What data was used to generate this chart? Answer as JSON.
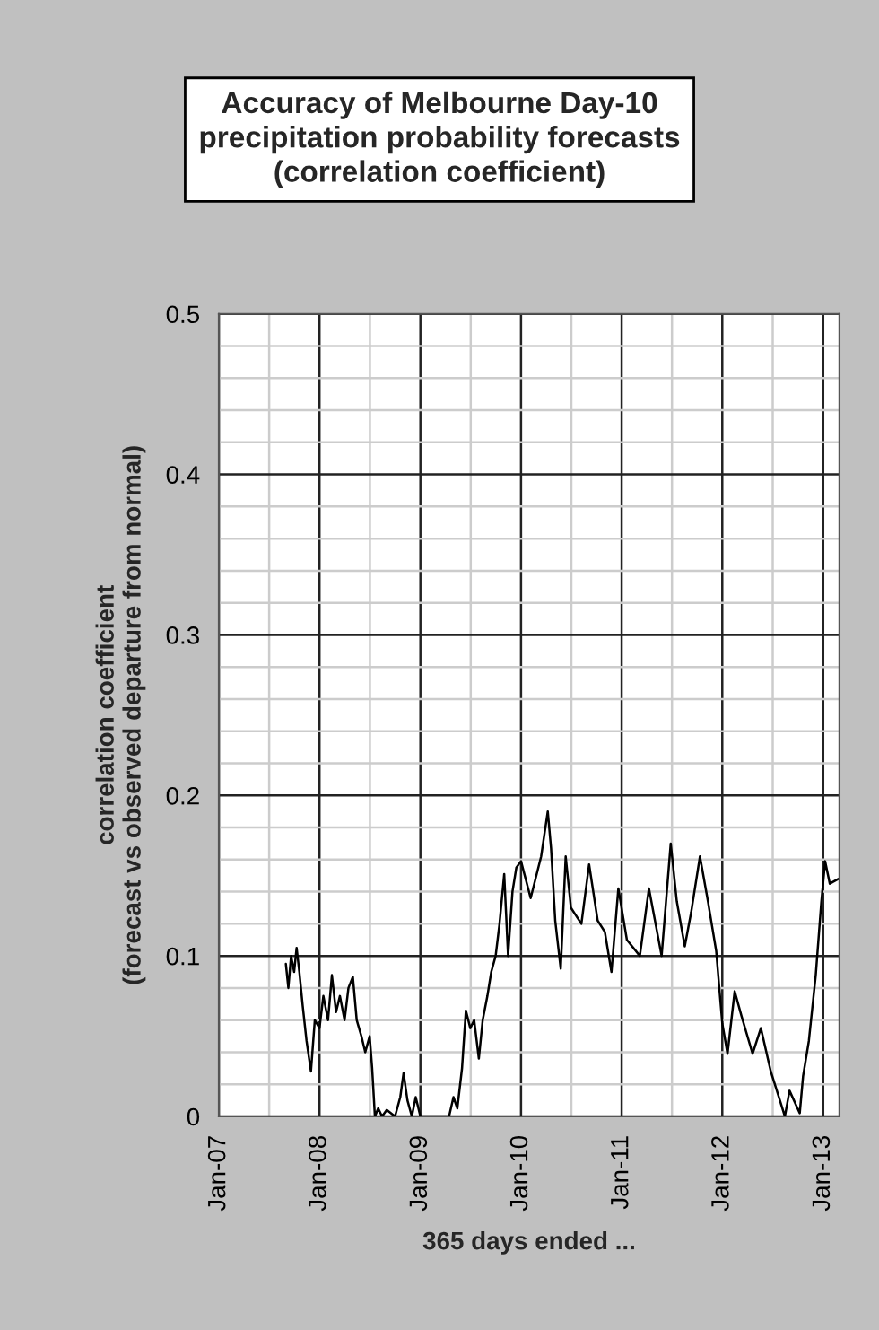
{
  "chart_data": {
    "type": "line",
    "title": "Accuracy of Melbourne Day-10\nprecipitation probability forecasts\n(correlation coefficient)",
    "xlabel": "365 days ended ...",
    "ylabel": "correlation coefficient\n(forecast vs observed departure from normal)",
    "x": [
      "2007-09-01",
      "2007-09-10",
      "2007-09-20",
      "2007-10-01",
      "2007-10-10",
      "2007-10-20",
      "2007-11-01",
      "2007-11-15",
      "2007-12-01",
      "2007-12-15",
      "2008-01-01",
      "2008-01-15",
      "2008-02-01",
      "2008-02-15",
      "2008-03-01",
      "2008-03-15",
      "2008-04-01",
      "2008-04-15",
      "2008-05-01",
      "2008-05-15",
      "2008-06-01",
      "2008-06-15",
      "2008-07-01",
      "2008-07-10",
      "2008-07-20",
      "2008-08-01",
      "2008-08-15",
      "2008-09-01",
      "2008-10-01",
      "2008-10-20",
      "2008-11-01",
      "2008-11-15",
      "2008-12-01",
      "2008-12-15",
      "2009-01-01",
      "2009-02-01",
      "2009-04-15",
      "2009-05-01",
      "2009-05-15",
      "2009-06-01",
      "2009-06-15",
      "2009-07-01",
      "2009-07-15",
      "2009-08-01",
      "2009-08-15",
      "2009-09-01",
      "2009-09-15",
      "2009-10-01",
      "2009-10-15",
      "2009-11-01",
      "2009-11-15",
      "2009-12-01",
      "2009-12-15",
      "2010-01-01",
      "2010-02-05",
      "2010-03-15",
      "2010-04-08",
      "2010-04-20",
      "2010-05-05",
      "2010-05-25",
      "2010-06-12",
      "2010-07-01",
      "2010-08-08",
      "2010-09-05",
      "2010-10-06",
      "2010-11-01",
      "2010-11-25",
      "2010-12-20",
      "2011-01-20",
      "2011-03-08",
      "2011-04-10",
      "2011-05-26",
      "2011-06-28",
      "2011-07-20",
      "2011-08-18",
      "2011-09-10",
      "2011-10-12",
      "2011-11-10",
      "2011-12-10",
      "2012-01-01",
      "2012-01-20",
      "2012-02-15",
      "2012-03-10",
      "2012-04-20",
      "2012-05-20",
      "2012-06-25",
      "2012-07-28",
      "2012-08-15",
      "2012-09-01",
      "2012-10-08",
      "2012-10-20",
      "2012-11-10",
      "2012-12-05",
      "2012-12-25",
      "2013-01-08",
      "2013-01-25",
      "2013-02-25"
    ],
    "series": [
      {
        "color": "#000000",
        "values": [
          0.095,
          0.08,
          0.1,
          0.09,
          0.105,
          0.09,
          0.069,
          0.047,
          0.028,
          0.06,
          0.055,
          0.075,
          0.06,
          0.088,
          0.065,
          0.075,
          0.06,
          0.08,
          0.087,
          0.06,
          0.05,
          0.04,
          0.05,
          0.03,
          0.0,
          0.005,
          0.0,
          0.004,
          0.0,
          0.012,
          0.027,
          0.01,
          0.0,
          0.012,
          0.0,
          0.0,
          0.0,
          0.012,
          0.005,
          0.03,
          0.066,
          0.055,
          0.06,
          0.036,
          0.06,
          0.075,
          0.09,
          0.1,
          0.12,
          0.151,
          0.1,
          0.14,
          0.155,
          0.159,
          0.136,
          0.162,
          0.19,
          0.167,
          0.122,
          0.092,
          0.162,
          0.13,
          0.12,
          0.157,
          0.122,
          0.115,
          0.09,
          0.142,
          0.11,
          0.1,
          0.142,
          0.1,
          0.17,
          0.134,
          0.106,
          0.127,
          0.162,
          0.134,
          0.103,
          0.058,
          0.039,
          0.078,
          0.063,
          0.039,
          0.055,
          0.028,
          0.01,
          0.0,
          0.016,
          0.002,
          0.025,
          0.047,
          0.088,
          0.133,
          0.159,
          0.145,
          0.148
        ]
      }
    ],
    "xlim": [
      "2007-01-01",
      "2013-03-01"
    ],
    "xticks": [
      {
        "value": "2007-01-01",
        "label": "Jan-07"
      },
      {
        "value": "2008-01-01",
        "label": "Jan-08"
      },
      {
        "value": "2009-01-01",
        "label": "Jan-09"
      },
      {
        "value": "2010-01-01",
        "label": "Jan-10"
      },
      {
        "value": "2011-01-01",
        "label": "Jan-11"
      },
      {
        "value": "2012-01-01",
        "label": "Jan-12"
      },
      {
        "value": "2013-01-01",
        "label": "Jan-13"
      }
    ],
    "ylim": [
      0,
      0.5
    ],
    "yticks": [
      0,
      0.1,
      0.2,
      0.3,
      0.4,
      0.5
    ],
    "grid": true,
    "legend": false,
    "marker": "none",
    "line_style": "solid"
  }
}
